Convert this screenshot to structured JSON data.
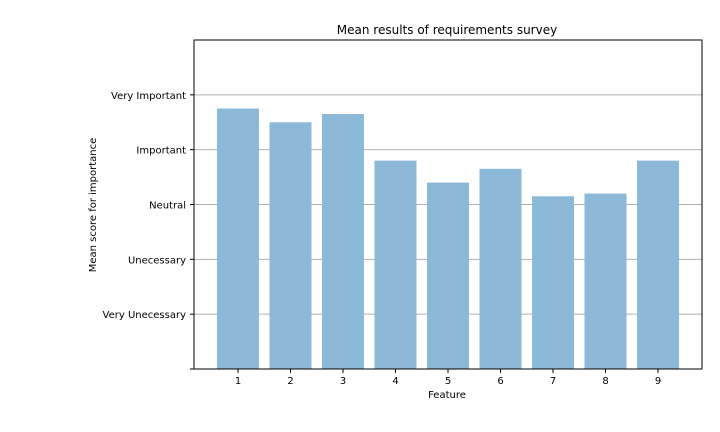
{
  "chart_data": {
    "type": "bar",
    "title": "Mean results of requirements survey",
    "xlabel": "Feature",
    "ylabel": "Mean score for importance",
    "categories": [
      "1",
      "2",
      "3",
      "4",
      "5",
      "6",
      "7",
      "8",
      "9"
    ],
    "values": [
      4.75,
      4.5,
      4.65,
      3.8,
      3.4,
      3.65,
      3.15,
      3.2,
      3.8
    ],
    "ylim": [
      0,
      6
    ],
    "yticks": [
      {
        "value": 0,
        "label": ""
      },
      {
        "value": 1,
        "label": "Very Unecessary"
      },
      {
        "value": 2,
        "label": "Unecessary"
      },
      {
        "value": 3,
        "label": "Neutral"
      },
      {
        "value": 4,
        "label": "Important"
      },
      {
        "value": 5,
        "label": "Very Important"
      }
    ],
    "grid": "horizontal",
    "bar_color": "#8db9d8",
    "grid_color": "#b0b0b0"
  }
}
